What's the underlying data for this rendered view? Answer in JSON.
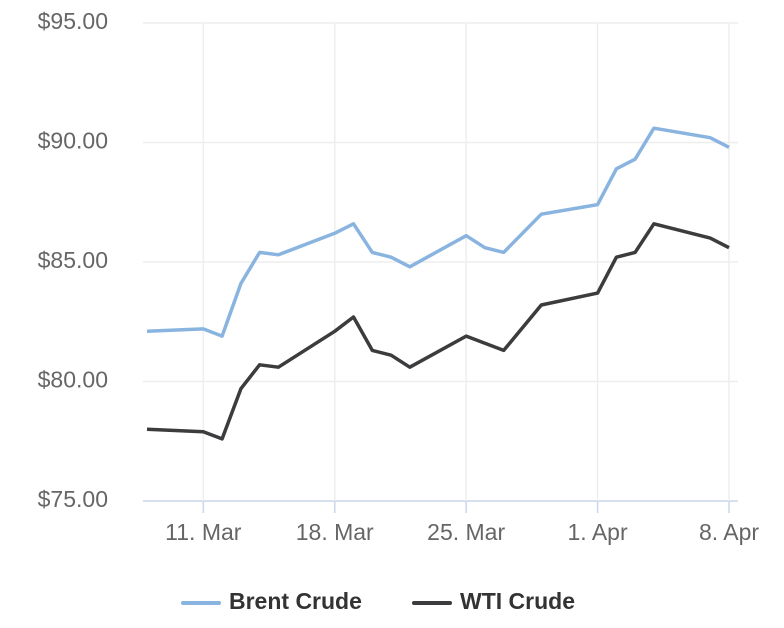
{
  "chart_data": {
    "type": "line",
    "x": [
      "8. Mar",
      "11. Mar",
      "12. Mar",
      "13. Mar",
      "14. Mar",
      "15. Mar",
      "18. Mar",
      "19. Mar",
      "20. Mar",
      "21. Mar",
      "22. Mar",
      "25. Mar",
      "26. Mar",
      "27. Mar",
      "29. Mar",
      "1. Apr",
      "2. Apr",
      "3. Apr",
      "4. Apr",
      "7. Apr",
      "8. Apr"
    ],
    "series": [
      {
        "name": "Brent Crude",
        "color": "#8ab4e0",
        "values": [
          82.1,
          82.2,
          81.9,
          84.1,
          85.4,
          85.3,
          86.2,
          86.6,
          85.4,
          85.2,
          84.8,
          86.1,
          85.6,
          85.4,
          87.0,
          87.4,
          88.9,
          89.3,
          90.6,
          90.2,
          89.8
        ]
      },
      {
        "name": "WTI Crude",
        "color": "#3c3c3e",
        "values": [
          78.0,
          77.9,
          77.6,
          79.7,
          80.7,
          80.6,
          82.1,
          82.7,
          81.3,
          81.1,
          80.6,
          81.9,
          81.6,
          81.3,
          83.2,
          83.7,
          85.2,
          85.4,
          86.6,
          86.0,
          85.6
        ]
      }
    ],
    "xlim": [
      "8. Mar",
      "8. Apr"
    ],
    "xticks": [
      "11. Mar",
      "18. Mar",
      "25. Mar",
      "1. Apr",
      "8. Apr"
    ],
    "ylim": [
      75,
      95
    ],
    "yticks": [
      {
        "value": 75,
        "label": "$75.00"
      },
      {
        "value": 80,
        "label": "$80.00"
      },
      {
        "value": 85,
        "label": "$85.00"
      },
      {
        "value": 90,
        "label": "$90.00"
      },
      {
        "value": 95,
        "label": "$95.00"
      }
    ],
    "grid": true,
    "legend": "bottom"
  }
}
